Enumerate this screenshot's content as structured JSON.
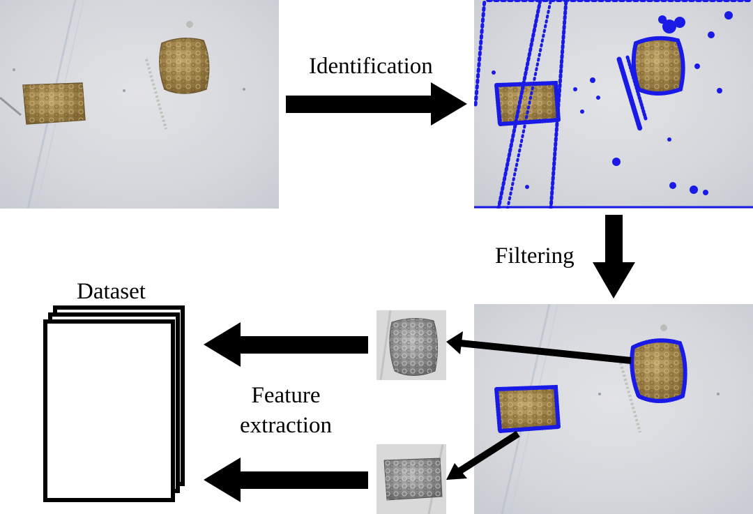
{
  "diagram": {
    "labels": {
      "identification": "Identification",
      "filtering": "Filtering",
      "dataset": "Dataset",
      "feature_line1": "Feature",
      "feature_line2": "extraction"
    },
    "images": {
      "raw": "raw micrograph of two cells",
      "identified": "micrograph with blue detected contour points",
      "filtered": "micrograph with filtered blue cell contours",
      "crop_top": "grayscale crop of upper cell",
      "crop_bottom": "grayscale crop of lower cell"
    },
    "colors": {
      "background": "#ffffff",
      "arrow": "#000000",
      "contour": "#1a1ae6",
      "micrograph_bg": "#d3d5da",
      "cell": "#a08348"
    }
  }
}
